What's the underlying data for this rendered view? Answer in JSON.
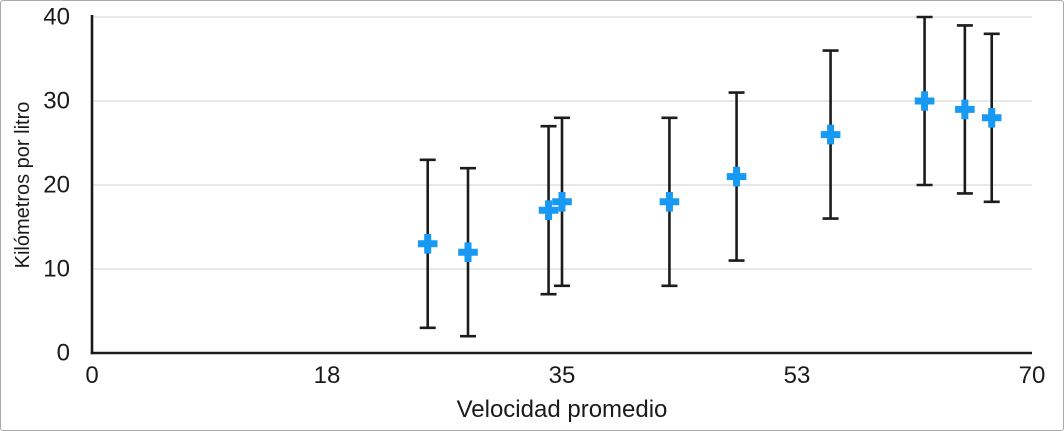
{
  "chart_data": {
    "type": "scatter",
    "title": "",
    "xlabel": "Velocidad promedio",
    "ylabel": "Kilómetros por litro",
    "xlim": [
      0,
      70
    ],
    "ylim": [
      0,
      40
    ],
    "x_tick_labels": [
      "0",
      "18",
      "35",
      "53",
      "70"
    ],
    "y_tick_labels": [
      "0",
      "10",
      "20",
      "30",
      "40"
    ],
    "grid": "horizontal-only",
    "legend": "none",
    "marker": "plus",
    "error_bars": {
      "direction": "y",
      "type": "symmetric",
      "magnitude": 10
    },
    "points": [
      {
        "x": 25,
        "y": 13
      },
      {
        "x": 28,
        "y": 12
      },
      {
        "x": 34,
        "y": 17
      },
      {
        "x": 35,
        "y": 18
      },
      {
        "x": 43,
        "y": 18
      },
      {
        "x": 48,
        "y": 21
      },
      {
        "x": 55,
        "y": 26
      },
      {
        "x": 62,
        "y": 30
      },
      {
        "x": 65,
        "y": 29
      },
      {
        "x": 67,
        "y": 28
      }
    ],
    "colors": {
      "marker": "#1899f4",
      "axis": "#1a1a1a",
      "error_bar": "#1c1c1c",
      "gridline": "#d9d9d9",
      "text": "#1a1a1a",
      "background": "#ffffff",
      "border": "#a9a9a9"
    }
  }
}
